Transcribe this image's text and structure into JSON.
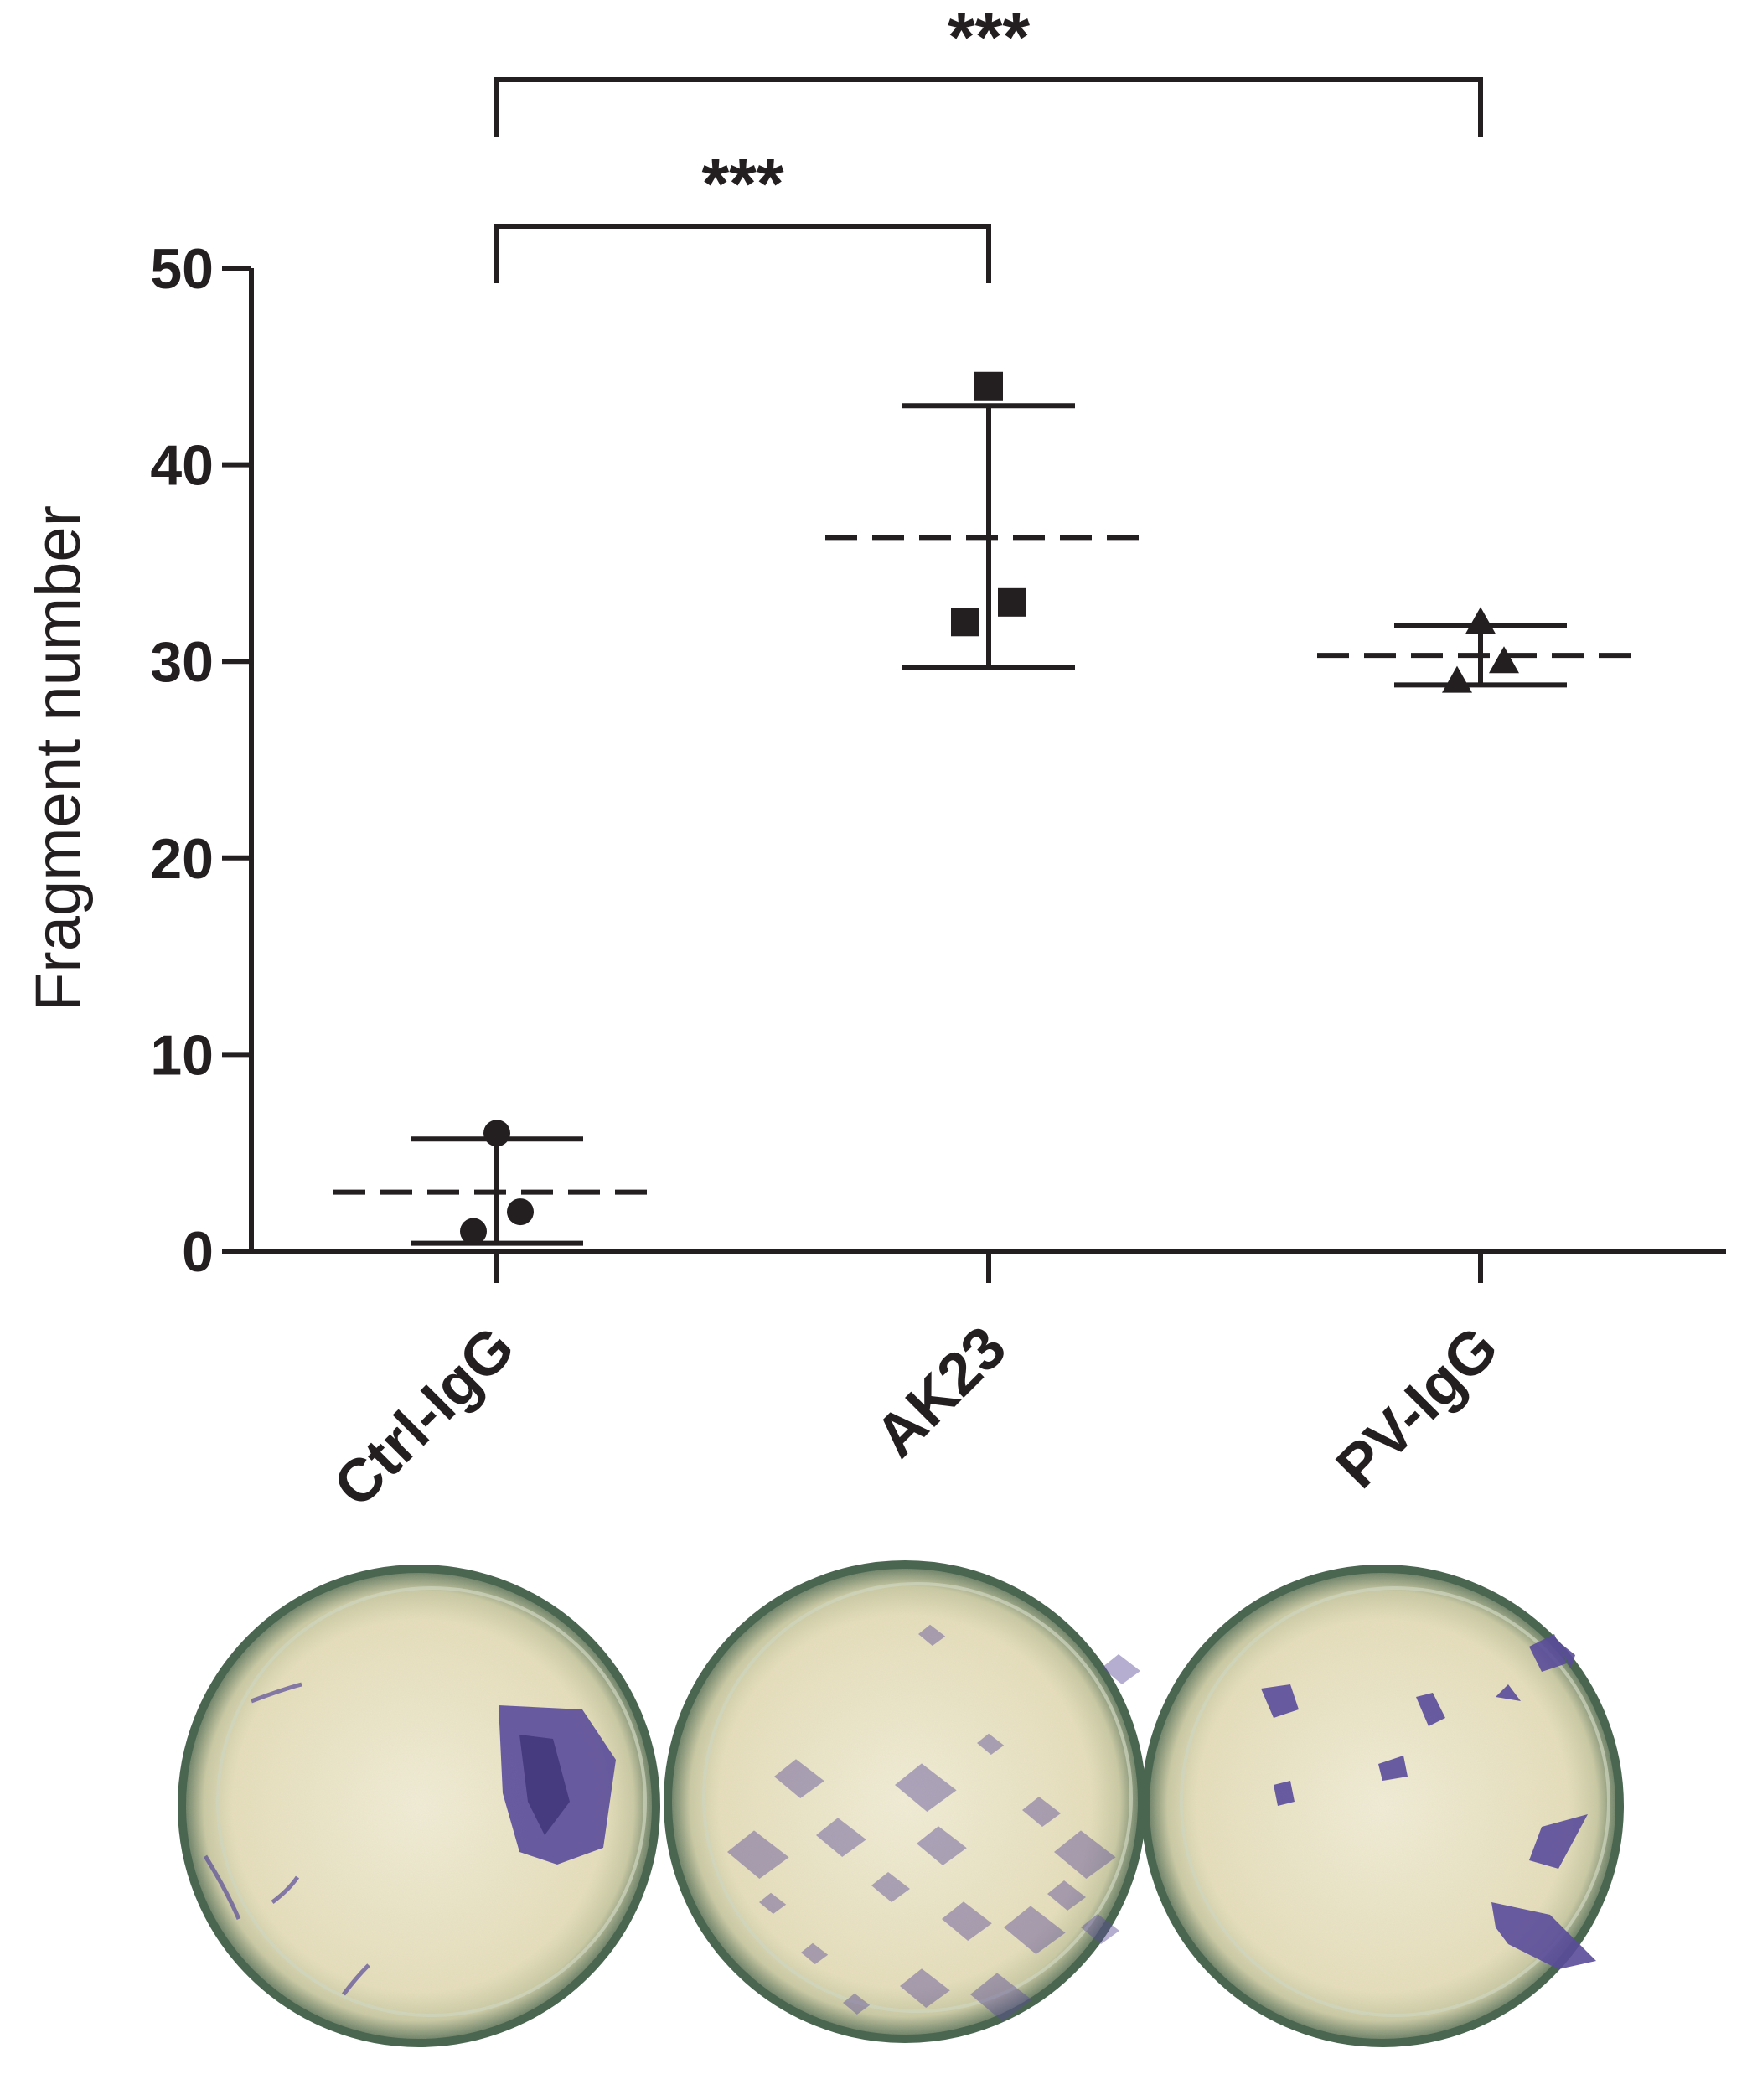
{
  "chart_data": {
    "type": "scatter",
    "ylabel": "Fragment number",
    "ylim": [
      0,
      50
    ],
    "yticks": [
      0,
      10,
      20,
      30,
      40,
      50
    ],
    "categories": [
      "Ctrl-IgG",
      "AK23",
      "PV-IgG"
    ],
    "series": [
      {
        "category": "Ctrl-IgG",
        "marker": "circle",
        "values": [
          6,
          1,
          2
        ],
        "mean": 3.0,
        "sd_low": 0.4,
        "sd_high": 5.7
      },
      {
        "category": "AK23",
        "marker": "square",
        "values": [
          44,
          32,
          33
        ],
        "mean": 36.3,
        "sd_low": 29.7,
        "sd_high": 43.0
      },
      {
        "category": "PV-IgG",
        "marker": "triangle",
        "values": [
          32,
          29,
          30
        ],
        "mean": 30.3,
        "sd_low": 28.8,
        "sd_high": 31.8
      }
    ],
    "significance": [
      {
        "from": "Ctrl-IgG",
        "to": "AK23",
        "label": "***"
      },
      {
        "from": "Ctrl-IgG",
        "to": "PV-IgG",
        "label": "***"
      }
    ],
    "grid": false,
    "colors": {
      "ink": "#231f20",
      "dish_rim": "#5f7a63",
      "dish_fill": "#e9e3c4",
      "stain": "#5a4b9a"
    }
  },
  "images": [
    {
      "category": "Ctrl-IgG",
      "content": "cell-sheet-single-fragment"
    },
    {
      "category": "AK23",
      "content": "cell-sheet-many-fragments"
    },
    {
      "category": "PV-IgG",
      "content": "cell-sheet-several-fragments"
    }
  ]
}
